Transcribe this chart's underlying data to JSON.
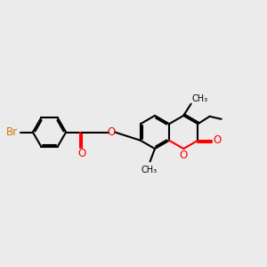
{
  "bg_color": "#ebebeb",
  "bond_color": "#000000",
  "oxygen_color": "#ff0000",
  "bromine_color": "#cc7700",
  "lw": 1.5,
  "fs": 8.5,
  "xlim": [
    0,
    10
  ],
  "ylim": [
    2,
    8
  ]
}
